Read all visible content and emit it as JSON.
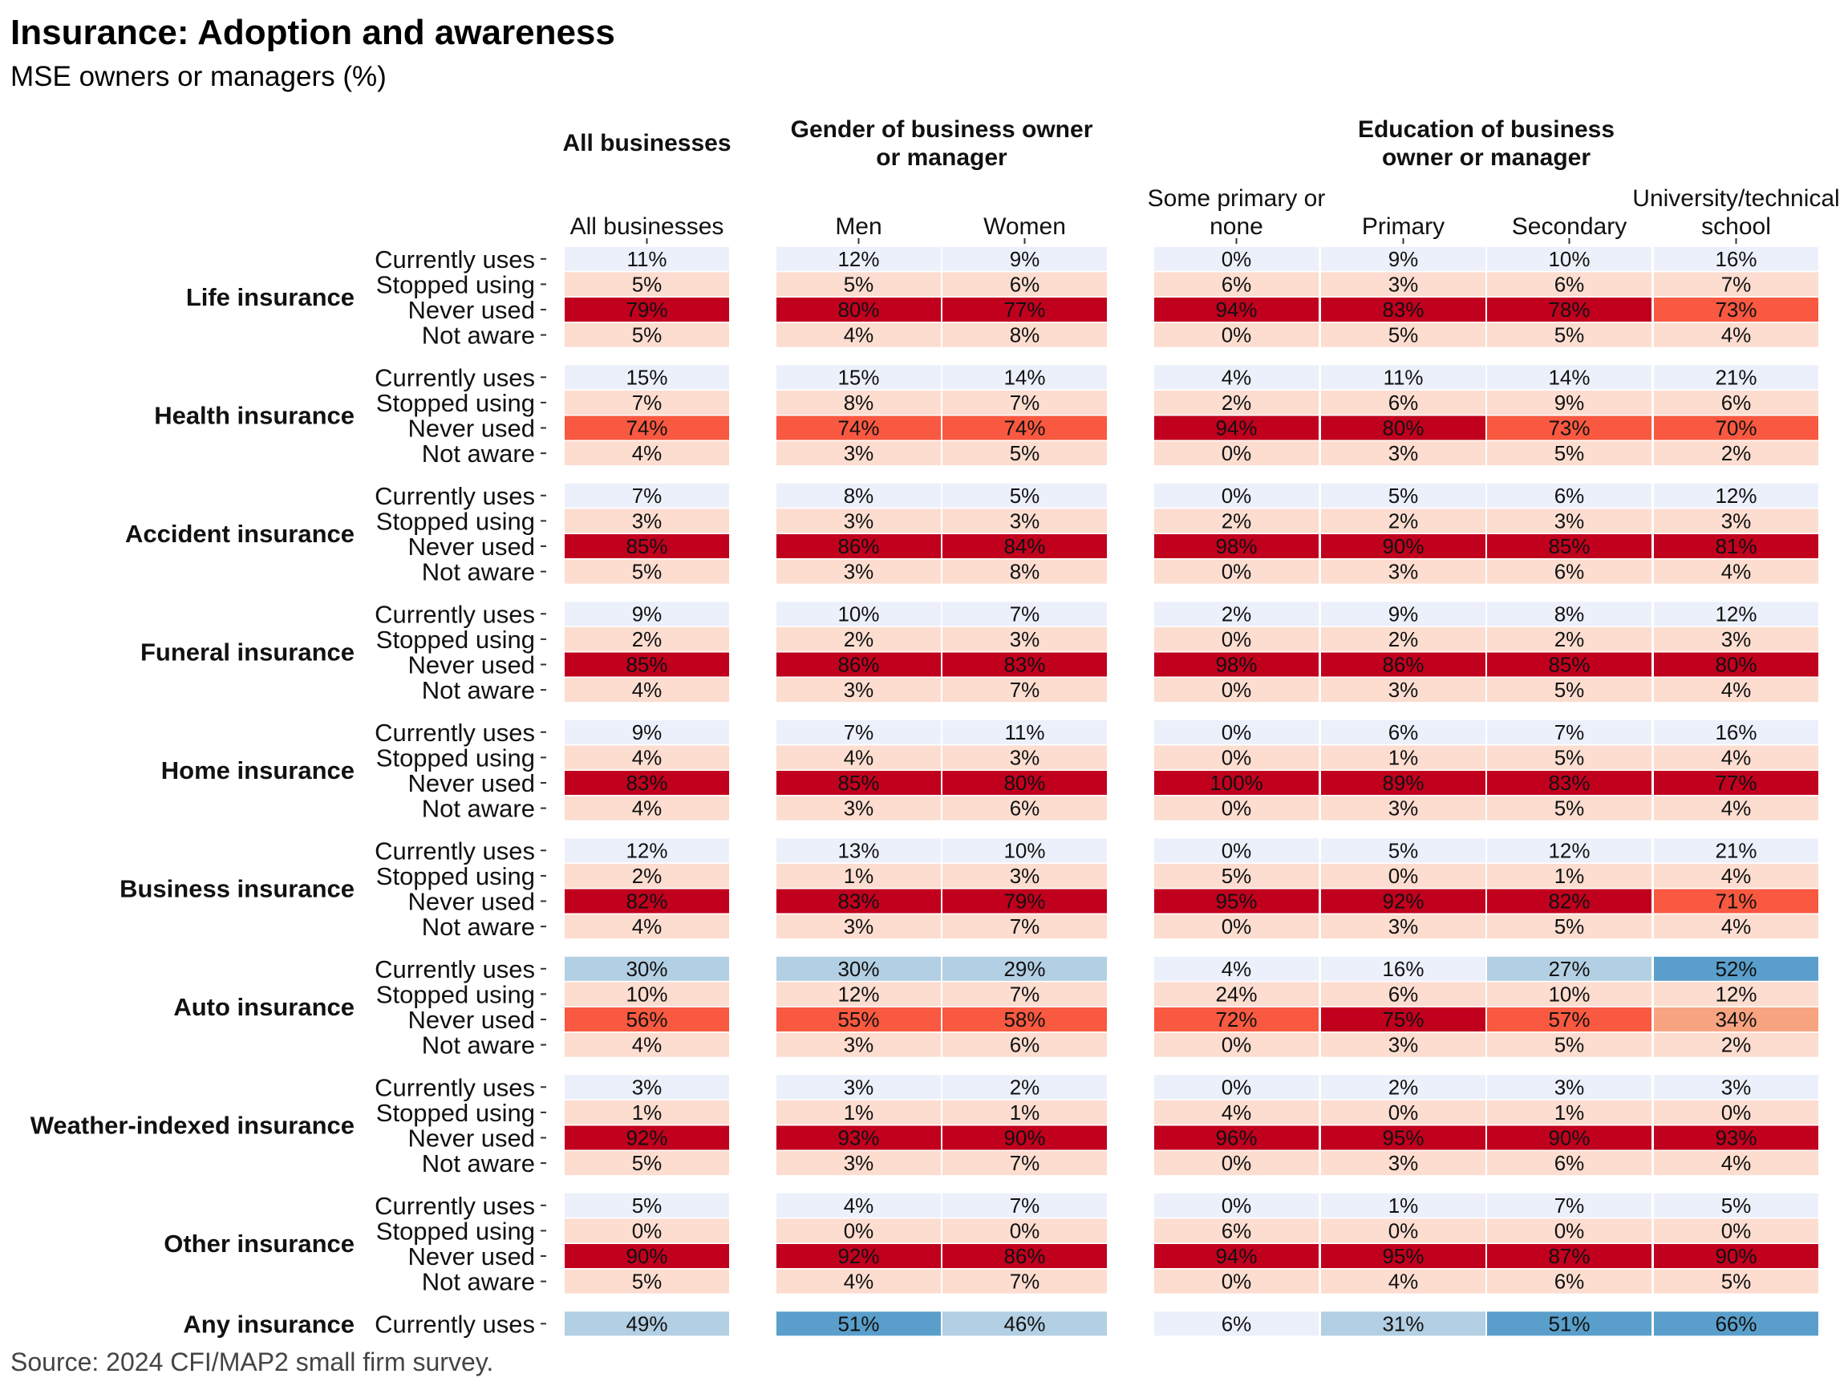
{
  "chart_data": {
    "type": "heatmap",
    "title": "Insurance: Adoption and awareness",
    "subtitle": "MSE owners or managers (%)",
    "source": "Source: 2024 CFI/MAP2 small firm survey.",
    "groups": [
      {
        "label": "All businesses",
        "columns": [
          "All businesses"
        ]
      },
      {
        "label": "Gender of business owner or manager",
        "columns": [
          "Men",
          "Women"
        ]
      },
      {
        "label": "Education of business owner or manager",
        "columns": [
          "Some primary or none",
          "Primary",
          "Secondary",
          "University/technical school"
        ]
      }
    ],
    "columns": [
      "All businesses",
      "Men",
      "Women",
      "Some primary or none",
      "Primary",
      "Secondary",
      "University/technical school"
    ],
    "statuses": [
      "Currently uses",
      "Stopped using",
      "Never used",
      "Not aware"
    ],
    "categories": [
      {
        "name": "Life insurance",
        "rows": [
          {
            "status": "Currently uses",
            "values": [
              11,
              12,
              9,
              0,
              9,
              10,
              16
            ]
          },
          {
            "status": "Stopped using",
            "values": [
              5,
              5,
              6,
              6,
              3,
              6,
              7
            ]
          },
          {
            "status": "Never used",
            "values": [
              79,
              80,
              77,
              94,
              83,
              78,
              73
            ]
          },
          {
            "status": "Not aware",
            "values": [
              5,
              4,
              8,
              0,
              5,
              5,
              4
            ]
          }
        ]
      },
      {
        "name": "Health insurance",
        "rows": [
          {
            "status": "Currently uses",
            "values": [
              15,
              15,
              14,
              4,
              11,
              14,
              21
            ]
          },
          {
            "status": "Stopped using",
            "values": [
              7,
              8,
              7,
              2,
              6,
              9,
              6
            ]
          },
          {
            "status": "Never used",
            "values": [
              74,
              74,
              74,
              94,
              80,
              73,
              70
            ]
          },
          {
            "status": "Not aware",
            "values": [
              4,
              3,
              5,
              0,
              3,
              5,
              2
            ]
          }
        ]
      },
      {
        "name": "Accident insurance",
        "rows": [
          {
            "status": "Currently uses",
            "values": [
              7,
              8,
              5,
              0,
              5,
              6,
              12
            ]
          },
          {
            "status": "Stopped using",
            "values": [
              3,
              3,
              3,
              2,
              2,
              3,
              3
            ]
          },
          {
            "status": "Never used",
            "values": [
              85,
              86,
              84,
              98,
              90,
              85,
              81
            ]
          },
          {
            "status": "Not aware",
            "values": [
              5,
              3,
              8,
              0,
              3,
              6,
              4
            ]
          }
        ]
      },
      {
        "name": "Funeral insurance",
        "rows": [
          {
            "status": "Currently uses",
            "values": [
              9,
              10,
              7,
              2,
              9,
              8,
              12
            ]
          },
          {
            "status": "Stopped using",
            "values": [
              2,
              2,
              3,
              0,
              2,
              2,
              3
            ]
          },
          {
            "status": "Never used",
            "values": [
              85,
              86,
              83,
              98,
              86,
              85,
              80
            ]
          },
          {
            "status": "Not aware",
            "values": [
              4,
              3,
              7,
              0,
              3,
              5,
              4
            ]
          }
        ]
      },
      {
        "name": "Home insurance",
        "rows": [
          {
            "status": "Currently uses",
            "values": [
              9,
              7,
              11,
              0,
              6,
              7,
              16
            ]
          },
          {
            "status": "Stopped using",
            "values": [
              4,
              4,
              3,
              0,
              1,
              5,
              4
            ]
          },
          {
            "status": "Never used",
            "values": [
              83,
              85,
              80,
              100,
              89,
              83,
              77
            ]
          },
          {
            "status": "Not aware",
            "values": [
              4,
              3,
              6,
              0,
              3,
              5,
              4
            ]
          }
        ]
      },
      {
        "name": "Business insurance",
        "rows": [
          {
            "status": "Currently uses",
            "values": [
              12,
              13,
              10,
              0,
              5,
              12,
              21
            ]
          },
          {
            "status": "Stopped using",
            "values": [
              2,
              1,
              3,
              5,
              0,
              1,
              4
            ]
          },
          {
            "status": "Never used",
            "values": [
              82,
              83,
              79,
              95,
              92,
              82,
              71
            ]
          },
          {
            "status": "Not aware",
            "values": [
              4,
              3,
              7,
              0,
              3,
              5,
              4
            ]
          }
        ]
      },
      {
        "name": "Auto insurance",
        "rows": [
          {
            "status": "Currently uses",
            "values": [
              30,
              30,
              29,
              4,
              16,
              27,
              52
            ]
          },
          {
            "status": "Stopped using",
            "values": [
              10,
              12,
              7,
              24,
              6,
              10,
              12
            ]
          },
          {
            "status": "Never used",
            "values": [
              56,
              55,
              58,
              72,
              75,
              57,
              34
            ]
          },
          {
            "status": "Not aware",
            "values": [
              4,
              3,
              6,
              0,
              3,
              5,
              2
            ]
          }
        ]
      },
      {
        "name": "Weather-indexed insurance",
        "rows": [
          {
            "status": "Currently uses",
            "values": [
              3,
              3,
              2,
              0,
              2,
              3,
              3
            ]
          },
          {
            "status": "Stopped using",
            "values": [
              1,
              1,
              1,
              4,
              0,
              1,
              0
            ]
          },
          {
            "status": "Never used",
            "values": [
              92,
              93,
              90,
              96,
              95,
              90,
              93
            ]
          },
          {
            "status": "Not aware",
            "values": [
              5,
              3,
              7,
              0,
              3,
              6,
              4
            ]
          }
        ]
      },
      {
        "name": "Other insurance",
        "rows": [
          {
            "status": "Currently uses",
            "values": [
              5,
              4,
              7,
              0,
              1,
              7,
              5
            ]
          },
          {
            "status": "Stopped using",
            "values": [
              0,
              0,
              0,
              6,
              0,
              0,
              0
            ]
          },
          {
            "status": "Never used",
            "values": [
              90,
              92,
              86,
              94,
              95,
              87,
              90
            ]
          },
          {
            "status": "Not aware",
            "values": [
              5,
              4,
              7,
              0,
              4,
              6,
              5
            ]
          }
        ]
      },
      {
        "name": "Any insurance",
        "rows": [
          {
            "status": "Currently uses",
            "values": [
              49,
              51,
              46,
              6,
              31,
              51,
              66
            ]
          }
        ]
      }
    ]
  },
  "colors": {
    "uses_light": "#EBF0FB",
    "uses_medium": "#B3CFE3",
    "uses_dark": "#5A9FCB",
    "not_using_light": "#FCDDD0",
    "not_using_salmon": "#F8A481",
    "not_using_medium": "#F85940",
    "not_using_dark": "#C1001E"
  }
}
